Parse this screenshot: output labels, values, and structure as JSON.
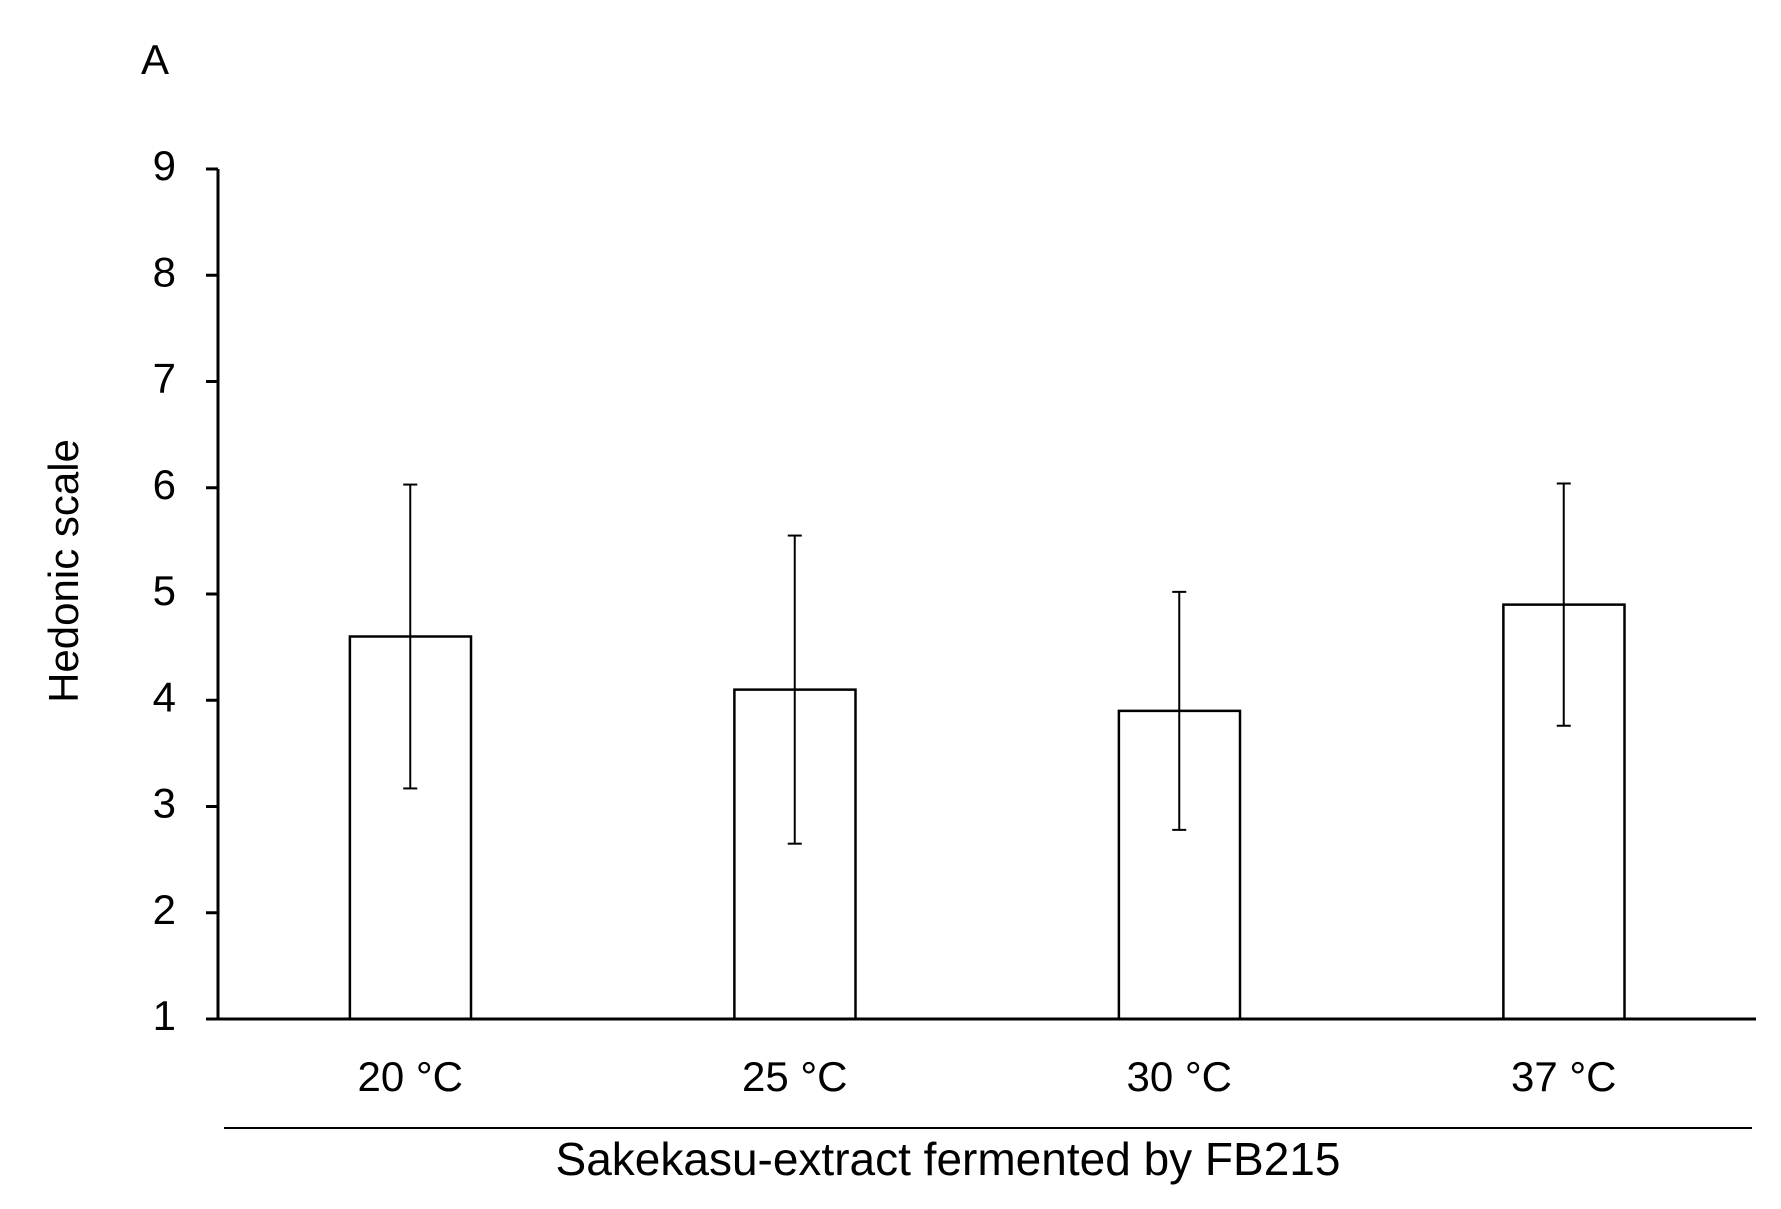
{
  "chart_data": {
    "type": "bar",
    "panel_label": "A",
    "categories": [
      "20 °C",
      "25 °C",
      "30 °C",
      "37 °C"
    ],
    "values": [
      4.6,
      4.1,
      3.9,
      4.9
    ],
    "errors": [
      1.43,
      1.45,
      1.12,
      1.14
    ],
    "color": "#ffffff",
    "ylabel": "Hedonic scale",
    "xlabel": "Sakekasu-extract fermented by FB215",
    "ylim": [
      1,
      9
    ],
    "yticks": [
      1,
      2,
      3,
      4,
      5,
      6,
      7,
      8,
      9
    ],
    "grid": false
  }
}
